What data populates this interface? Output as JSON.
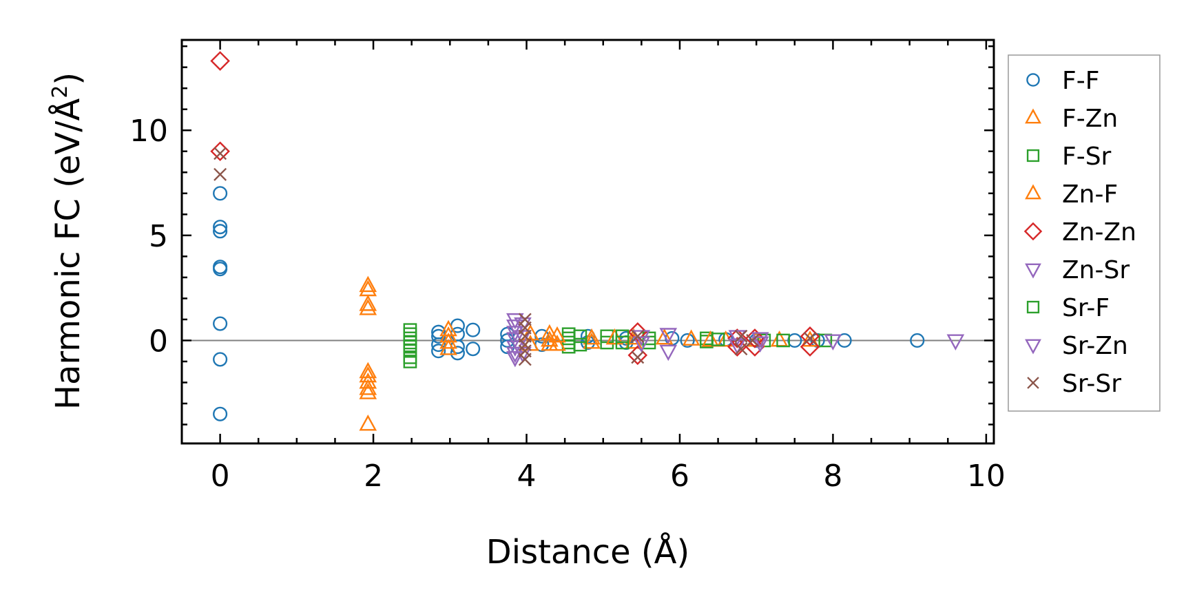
{
  "chart_data": {
    "type": "scatter",
    "xlabel": "Distance (Å)",
    "ylabel_main": "Harmonic FC (eV/Å",
    "ylabel_sup": "2",
    "ylabel_close": ")",
    "xlim": [
      -0.5,
      10.1
    ],
    "ylim": [
      -4.9,
      14.3
    ],
    "x_ticks": [
      0,
      2,
      4,
      6,
      8,
      10
    ],
    "y_ticks": [
      0,
      5,
      10
    ],
    "x_tick_labels": [
      "0",
      "2",
      "4",
      "6",
      "8",
      "10"
    ],
    "y_tick_labels": [
      "0",
      "5",
      "10"
    ],
    "zero_line": 0,
    "legend_position": "outside-right",
    "series": [
      {
        "name": "F-F",
        "marker": "circle",
        "color": "#1f77b4",
        "points": [
          [
            0,
            7.0
          ],
          [
            0,
            5.4
          ],
          [
            0,
            5.2
          ],
          [
            0,
            3.5
          ],
          [
            0,
            3.4
          ],
          [
            0,
            0.8
          ],
          [
            0,
            -0.9
          ],
          [
            0,
            -3.5
          ],
          [
            2.85,
            0.4
          ],
          [
            2.85,
            0.2
          ],
          [
            2.85,
            -0.2
          ],
          [
            2.85,
            -0.5
          ],
          [
            3.1,
            0.7
          ],
          [
            3.1,
            0.3
          ],
          [
            3.1,
            -0.3
          ],
          [
            3.1,
            -0.6
          ],
          [
            3.3,
            0.5
          ],
          [
            3.3,
            -0.4
          ],
          [
            3.75,
            0.3
          ],
          [
            3.75,
            0.0
          ],
          [
            3.75,
            -0.3
          ],
          [
            4.2,
            0.2
          ],
          [
            4.2,
            -0.2
          ],
          [
            4.8,
            0.2
          ],
          [
            4.8,
            -0.1
          ],
          [
            5.3,
            0.1
          ],
          [
            5.3,
            -0.1
          ],
          [
            5.9,
            0.1
          ],
          [
            6.1,
            0.0
          ],
          [
            6.6,
            0.05
          ],
          [
            7.0,
            0.0
          ],
          [
            7.5,
            0.0
          ],
          [
            7.8,
            0.0
          ],
          [
            8.15,
            0.0
          ],
          [
            9.1,
            0.0
          ]
        ]
      },
      {
        "name": "F-Zn",
        "marker": "triangle-up",
        "color": "#ff7f0e",
        "points": [
          [
            1.93,
            2.6
          ],
          [
            1.93,
            2.4
          ],
          [
            1.93,
            1.7
          ],
          [
            1.93,
            1.5
          ],
          [
            1.93,
            -1.5
          ],
          [
            1.93,
            -1.7
          ],
          [
            1.93,
            -2.0
          ],
          [
            1.93,
            -2.3
          ],
          [
            1.93,
            -2.5
          ],
          [
            1.93,
            -4.0
          ],
          [
            2.98,
            0.5
          ],
          [
            2.98,
            0.2
          ],
          [
            2.98,
            -0.1
          ],
          [
            2.98,
            -0.4
          ],
          [
            4.3,
            0.3
          ],
          [
            4.3,
            0.0
          ],
          [
            4.3,
            -0.2
          ],
          [
            4.85,
            0.1
          ],
          [
            4.85,
            -0.1
          ],
          [
            5.4,
            0.1
          ],
          [
            5.4,
            -0.1
          ],
          [
            6.15,
            0.05
          ],
          [
            6.6,
            0.0
          ],
          [
            7.3,
            0.0
          ]
        ]
      },
      {
        "name": "F-Sr",
        "marker": "square",
        "color": "#2ca02c",
        "points": [
          [
            2.48,
            0.5
          ],
          [
            2.48,
            0.3
          ],
          [
            2.48,
            0.1
          ],
          [
            2.48,
            -0.1
          ],
          [
            2.48,
            -0.3
          ],
          [
            2.48,
            -0.5
          ],
          [
            2.48,
            -0.8
          ],
          [
            2.48,
            -1.0
          ],
          [
            4.55,
            0.3
          ],
          [
            4.55,
            0.1
          ],
          [
            4.55,
            -0.1
          ],
          [
            4.55,
            -0.3
          ],
          [
            4.7,
            0.2
          ],
          [
            4.7,
            -0.2
          ],
          [
            5.05,
            0.2
          ],
          [
            5.05,
            -0.1
          ],
          [
            5.6,
            0.1
          ],
          [
            5.6,
            -0.1
          ],
          [
            6.35,
            0.1
          ],
          [
            6.35,
            -0.05
          ],
          [
            7.1,
            0.0
          ],
          [
            7.9,
            0.0
          ]
        ]
      },
      {
        "name": "Zn-F",
        "marker": "triangle-up",
        "color": "#ff7f0e",
        "points": [
          [
            4.05,
            0.3
          ],
          [
            4.05,
            -0.2
          ],
          [
            4.4,
            0.2
          ],
          [
            4.4,
            -0.2
          ],
          [
            5.15,
            0.1
          ],
          [
            5.8,
            0.1
          ],
          [
            6.4,
            0.0
          ],
          [
            7.0,
            0.0
          ],
          [
            7.7,
            0.0
          ]
        ]
      },
      {
        "name": "Zn-Zn",
        "marker": "diamond",
        "color": "#d62728",
        "points": [
          [
            0,
            13.3
          ],
          [
            0,
            9.0
          ],
          [
            5.45,
            0.4
          ],
          [
            5.45,
            -0.7
          ],
          [
            6.75,
            0.1
          ],
          [
            6.75,
            -0.3
          ],
          [
            6.98,
            0.1
          ],
          [
            6.98,
            -0.3
          ],
          [
            7.7,
            0.2
          ],
          [
            7.7,
            -0.3
          ]
        ]
      },
      {
        "name": "Zn-Sr",
        "marker": "triangle-down",
        "color": "#9467bd",
        "points": [
          [
            3.85,
            1.0
          ],
          [
            3.85,
            0.7
          ],
          [
            3.85,
            0.4
          ],
          [
            3.85,
            0.1
          ],
          [
            3.85,
            -0.3
          ],
          [
            3.85,
            -0.6
          ],
          [
            3.85,
            -0.8
          ],
          [
            5.85,
            0.3
          ],
          [
            5.85,
            -0.5
          ],
          [
            6.75,
            0.2
          ],
          [
            6.75,
            -0.2
          ],
          [
            8.0,
            0.0
          ],
          [
            9.6,
            0.0
          ]
        ]
      },
      {
        "name": "Sr-F",
        "marker": "square",
        "color": "#2ca02c",
        "points": [
          [
            5.25,
            0.2
          ],
          [
            5.25,
            -0.1
          ],
          [
            6.5,
            0.05
          ],
          [
            7.35,
            0.0
          ]
        ]
      },
      {
        "name": "Sr-Zn",
        "marker": "triangle-down",
        "color": "#9467bd",
        "points": [
          [
            3.95,
            0.8
          ],
          [
            3.95,
            0.2
          ],
          [
            3.95,
            -0.6
          ],
          [
            5.5,
            0.2
          ],
          [
            5.5,
            -0.1
          ],
          [
            7.05,
            0.1
          ],
          [
            7.05,
            -0.1
          ]
        ]
      },
      {
        "name": "Sr-Sr",
        "marker": "x",
        "color": "#8c564b",
        "points": [
          [
            0,
            8.9
          ],
          [
            0,
            7.9
          ],
          [
            3.98,
            1.0
          ],
          [
            3.98,
            0.6
          ],
          [
            3.98,
            0.2
          ],
          [
            3.98,
            -0.2
          ],
          [
            3.98,
            -0.5
          ],
          [
            3.98,
            -0.9
          ],
          [
            5.45,
            0.2
          ],
          [
            5.45,
            -0.8
          ],
          [
            6.8,
            0.2
          ],
          [
            6.8,
            -0.4
          ],
          [
            6.95,
            0.0
          ],
          [
            7.7,
            0.1
          ]
        ]
      }
    ]
  }
}
